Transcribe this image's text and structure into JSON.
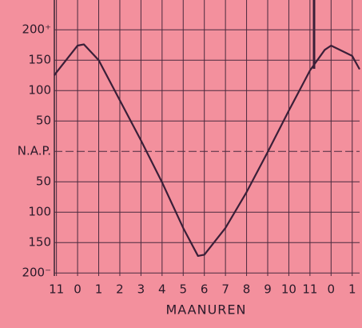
{
  "chart_data": {
    "type": "line",
    "x_label": "MAANUREN",
    "xlim": [
      -1.1,
      13.35
    ],
    "xticks": [
      {
        "value": -1,
        "label": "11"
      },
      0,
      1,
      2,
      3,
      4,
      5,
      6,
      7,
      8,
      9,
      10,
      11,
      {
        "value": 12,
        "label": "0"
      },
      {
        "value": 13,
        "label": "1"
      }
    ],
    "ylim": [
      -205,
      249
    ],
    "yticks": [
      {
        "value": 200,
        "label": "200⁺"
      },
      150,
      100,
      50,
      {
        "value": 0,
        "label": "N.A.P."
      },
      {
        "value": -50,
        "label": "50"
      },
      {
        "value": -100,
        "label": "100"
      },
      {
        "value": -150,
        "label": "150"
      },
      {
        "value": -200,
        "label": "200⁻"
      }
    ],
    "grid": true,
    "series": [
      {
        "color": "#3a1f38",
        "x": [
          -1.1,
          -1,
          0,
          0.3,
          1,
          2,
          3,
          4,
          5,
          5.7,
          6,
          7,
          8,
          9,
          10,
          11,
          11.7,
          12,
          13,
          13.35
        ],
        "values": [
          125,
          130,
          174,
          176,
          150,
          84,
          18,
          -51,
          -126,
          -172,
          -170,
          -126,
          -67,
          -1,
          67,
          133,
          167,
          174,
          157,
          135
        ]
      }
    ]
  }
}
